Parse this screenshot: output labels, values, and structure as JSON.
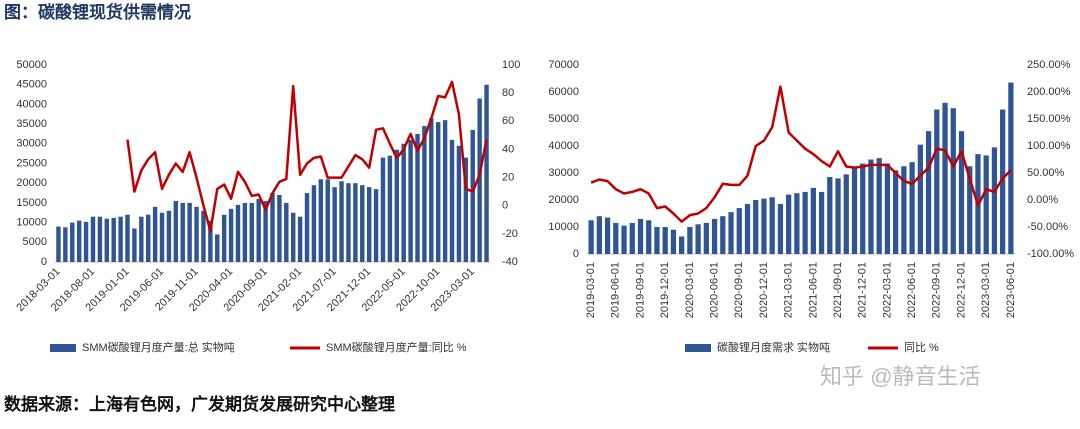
{
  "title": "图：碳酸锂现货供需情况",
  "source": "数据来源：上海有色网，广发期货发展研究中心整理",
  "watermark": "知乎 @静音生活",
  "chart_data": [
    {
      "type": "combo",
      "categories": [
        "2018-03-01",
        null,
        null,
        null,
        null,
        "2018-08-01",
        null,
        null,
        null,
        null,
        "2019-01-01",
        null,
        null,
        null,
        null,
        "2019-06-01",
        null,
        null,
        null,
        null,
        "2019-11-01",
        null,
        null,
        null,
        null,
        "2020-04-01",
        null,
        null,
        null,
        null,
        "2020-09-01",
        null,
        null,
        null,
        null,
        "2021-02-01",
        null,
        null,
        null,
        null,
        "2021-07-01",
        null,
        null,
        null,
        null,
        "2021-12-01",
        null,
        null,
        null,
        null,
        "2022-05-01",
        null,
        null,
        null,
        null,
        "2022-10-01",
        null,
        null,
        null,
        null,
        "2023-03-01",
        null,
        null
      ],
      "series": [
        {
          "name": "SMM碳酸锂月度产量:总 实物吨",
          "color": "#2f5597",
          "axis": "y",
          "values": [
            9000,
            8800,
            10000,
            10500,
            10200,
            11500,
            11500,
            11000,
            11200,
            11500,
            12000,
            8500,
            11500,
            12000,
            14000,
            12500,
            13000,
            15500,
            15000,
            15000,
            14000,
            13000,
            10500,
            7000,
            12000,
            13500,
            14500,
            15000,
            15000,
            16000,
            15500,
            17500,
            17000,
            15000,
            12500,
            11500,
            17500,
            19500,
            21000,
            21000,
            19000,
            20500,
            20000,
            20000,
            19500,
            19000,
            18500,
            26500,
            27000,
            28500,
            30000,
            31000,
            32500,
            34500,
            36500,
            35500,
            36000,
            31000,
            29500,
            26500,
            33500,
            41500,
            45000
          ]
        },
        {
          "name": "SMM碳酸锂月度产量:同比 %",
          "color": "#c00000",
          "axis": "y2",
          "values": [
            null,
            null,
            null,
            null,
            null,
            null,
            null,
            null,
            null,
            null,
            47,
            10,
            25,
            33,
            38,
            12,
            22,
            30,
            24,
            38,
            20,
            0,
            -18,
            12,
            15,
            5,
            24,
            17,
            7,
            8,
            -3,
            9,
            17,
            19,
            85,
            22,
            30,
            34,
            35,
            20,
            20,
            20,
            28,
            36,
            33,
            27,
            54,
            55,
            44,
            34,
            40,
            51,
            39,
            48,
            62,
            78,
            77,
            88,
            65,
            12,
            10,
            22,
            47
          ]
        }
      ],
      "ylim": [
        0,
        50000
      ],
      "yticks": [
        0,
        5000,
        10000,
        15000,
        20000,
        25000,
        30000,
        35000,
        40000,
        45000,
        50000
      ],
      "y2lim": [
        -40,
        100
      ],
      "y2ticks": [
        -40,
        -20,
        0,
        20,
        40,
        60,
        80,
        100
      ],
      "grid": false,
      "legend": "bottom"
    },
    {
      "type": "combo",
      "categories": [
        "2019-03-01",
        null,
        null,
        "2019-06-01",
        null,
        null,
        "2019-09-01",
        null,
        null,
        "2019-12-01",
        null,
        null,
        "2020-03-01",
        null,
        null,
        "2020-06-01",
        null,
        null,
        "2020-09-01",
        null,
        null,
        "2020-12-01",
        null,
        null,
        "2021-03-01",
        null,
        null,
        "2021-06-01",
        null,
        null,
        "2021-09-01",
        null,
        null,
        "2021-12-01",
        null,
        null,
        "2022-03-01",
        null,
        null,
        "2022-06-01",
        null,
        null,
        "2022-09-01",
        null,
        null,
        "2022-12-01",
        null,
        null,
        "2023-03-01",
        null,
        null,
        "2023-06-01"
      ],
      "series": [
        {
          "name": "碳酸锂月度需求 实物吨",
          "color": "#2f5597",
          "axis": "y",
          "values": [
            12500,
            14000,
            13500,
            11500,
            10500,
            11500,
            13000,
            12500,
            10000,
            10000,
            9000,
            6500,
            10000,
            11000,
            11500,
            13000,
            14000,
            15500,
            17000,
            18500,
            20000,
            20500,
            21000,
            18500,
            22000,
            22500,
            23000,
            24500,
            23000,
            28500,
            28000,
            29500,
            32000,
            33500,
            35000,
            35500,
            33500,
            31000,
            32500,
            34000,
            40500,
            45500,
            53500,
            56000,
            54000,
            45500,
            32500,
            37000,
            36500,
            39500,
            53500,
            63500
          ]
        },
        {
          "name": "同比 %",
          "color": "#c00000",
          "axis": "y2",
          "values": [
            32,
            38,
            35,
            20,
            12,
            15,
            20,
            12,
            -15,
            -12,
            -25,
            -40,
            -28,
            -25,
            -15,
            5,
            30,
            28,
            28,
            45,
            100,
            110,
            135,
            210,
            125,
            110,
            95,
            85,
            72,
            62,
            90,
            62,
            60,
            62,
            65,
            65,
            65,
            50,
            35,
            30,
            45,
            60,
            95,
            92,
            62,
            90,
            40,
            -10,
            20,
            15,
            40,
            55
          ]
        }
      ],
      "ylim": [
        0,
        70000
      ],
      "yticks": [
        0,
        10000,
        20000,
        30000,
        40000,
        50000,
        60000,
        70000
      ],
      "y2lim": [
        -100,
        250
      ],
      "y2ticks": [
        {
          "value": -100,
          "label": "-100.00%"
        },
        {
          "value": -50,
          "label": "-50.00%"
        },
        {
          "value": 0,
          "label": "0.00%"
        },
        {
          "value": 50,
          "label": "50.00%"
        },
        {
          "value": 100,
          "label": "100.00%"
        },
        {
          "value": 150,
          "label": "150.00%"
        },
        {
          "value": 200,
          "label": "200.00%"
        },
        {
          "value": 250,
          "label": "250.00%"
        }
      ],
      "grid": false,
      "legend": "bottom"
    }
  ]
}
